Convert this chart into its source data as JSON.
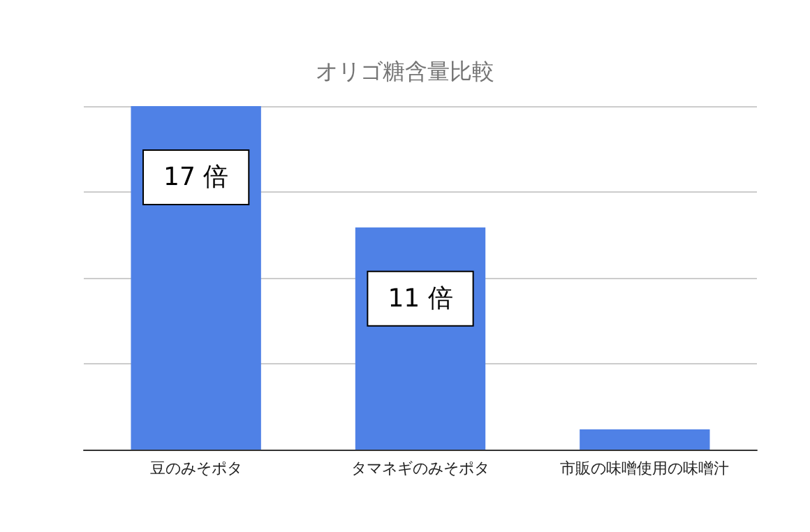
{
  "chart_data": {
    "type": "bar",
    "title": "オリゴ糖含量比較",
    "categories": [
      "豆のみそポタ",
      "タマネギのみそポタ",
      "市販の味噌使用の味噌汁"
    ],
    "values": [
      17,
      11,
      1
    ],
    "value_labels": [
      "17 倍",
      "11 倍",
      null
    ],
    "color": "#4f81e6",
    "ylim": [
      0,
      17
    ],
    "yticks": [
      {
        "value": 0,
        "label": null
      },
      {
        "value": 4.25,
        "label": null
      },
      {
        "value": 8.5,
        "label": null
      },
      {
        "value": 12.75,
        "label": null
      },
      {
        "value": 17,
        "label": null
      }
    ],
    "grid": "y",
    "tick_labels": "x"
  }
}
